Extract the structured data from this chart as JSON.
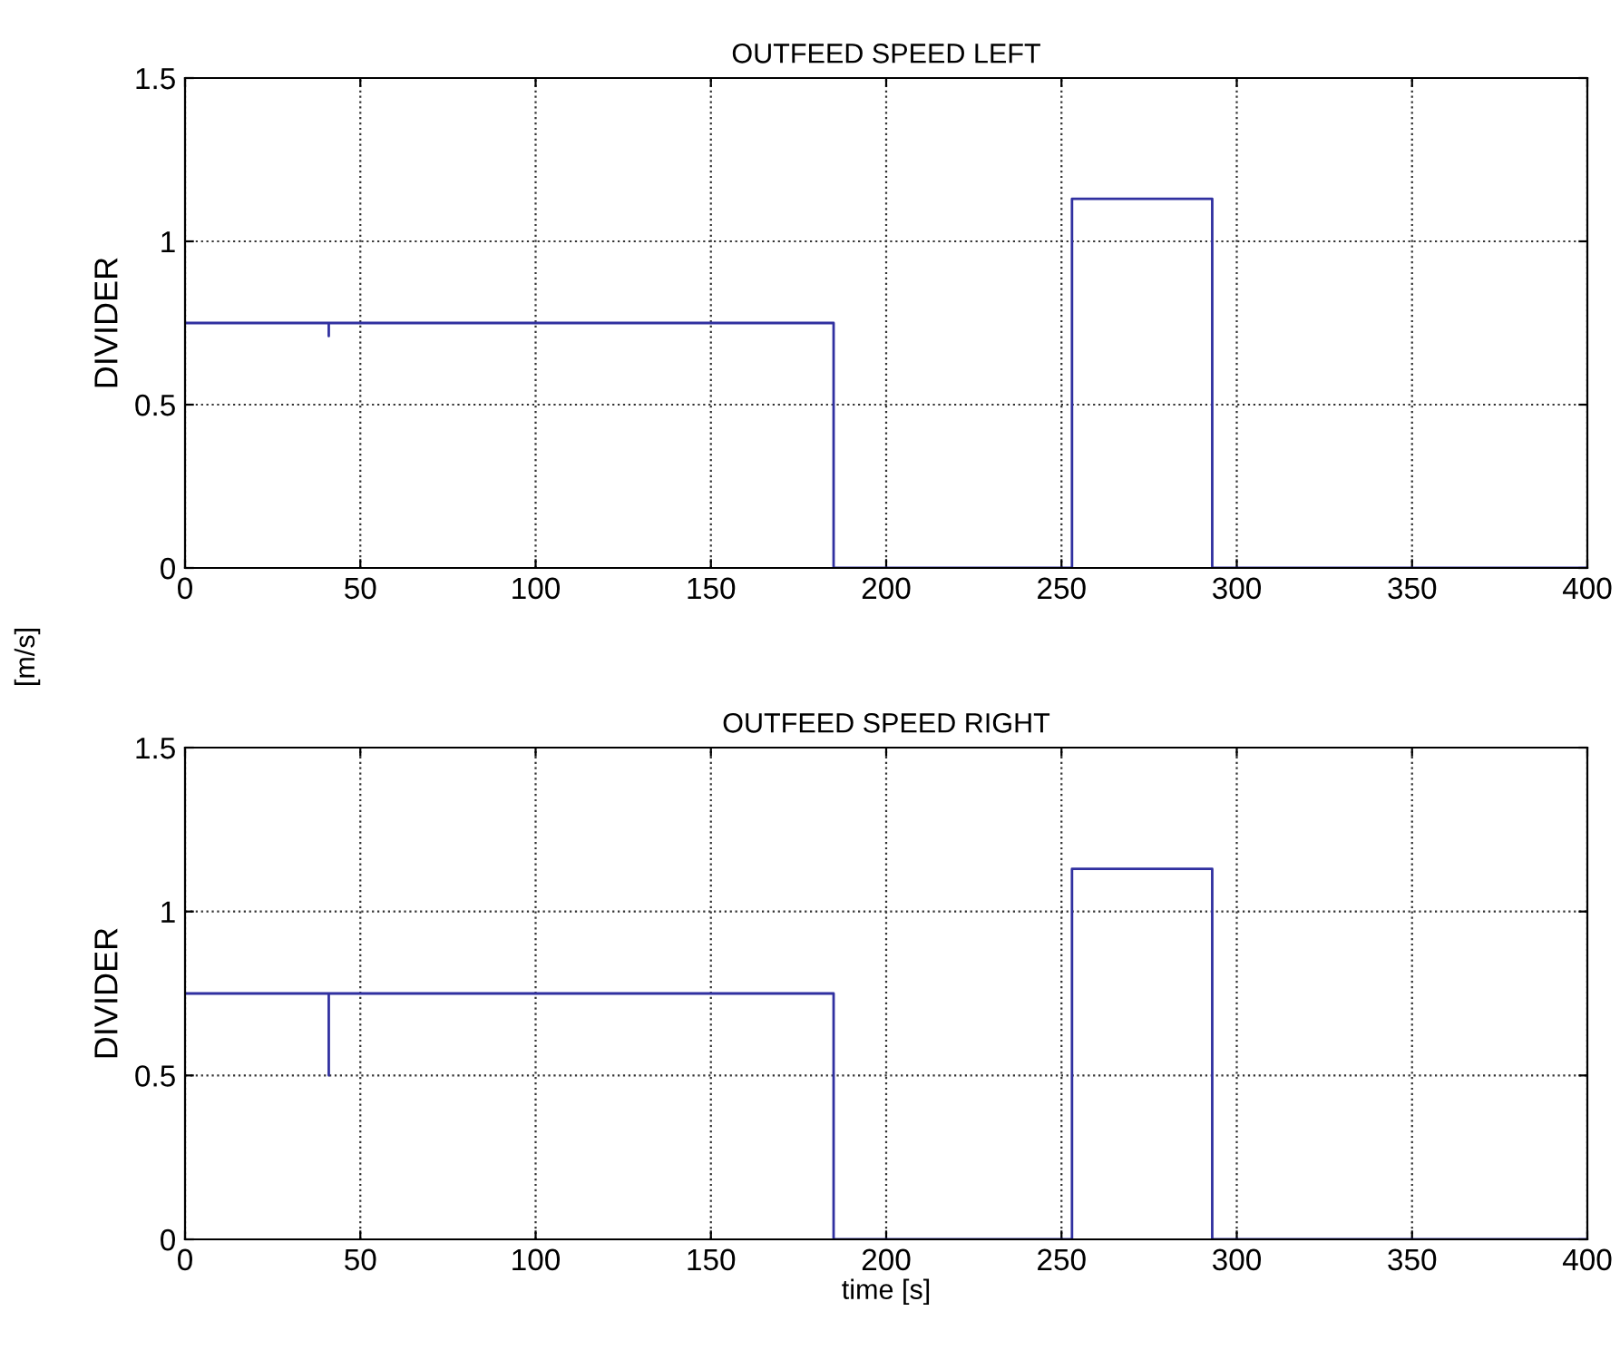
{
  "chart_data": [
    {
      "type": "line",
      "title": "OUTFEED SPEED LEFT",
      "ylabel": "DIVIDER",
      "annotations": [
        "[m/s]"
      ],
      "series": [
        {
          "color": "#3030a0",
          "x": [
            0,
            41,
            41,
            41,
            185,
            185,
            253,
            253,
            293,
            293,
            400
          ],
          "values": [
            0.75,
            0.75,
            0.71,
            0.75,
            0.75,
            0,
            0,
            1.13,
            1.13,
            0,
            0
          ]
        }
      ],
      "xlim": [
        0,
        400
      ],
      "ylim": [
        0,
        1.5
      ],
      "xticks": [
        0,
        50,
        100,
        150,
        200,
        250,
        300,
        350,
        400
      ],
      "yticks": [
        0,
        0.5,
        1,
        1.5
      ],
      "grid": true,
      "line_style": "solid"
    },
    {
      "type": "line",
      "title": "OUTFEED SPEED RIGHT",
      "ylabel": "DIVIDER",
      "xlabel": "time [s]",
      "series": [
        {
          "color": "#3030a0",
          "x": [
            0,
            41,
            41,
            41,
            185,
            185,
            253,
            253,
            293,
            293,
            400
          ],
          "values": [
            0.75,
            0.75,
            0.5,
            0.75,
            0.75,
            0,
            0,
            1.13,
            1.13,
            0,
            0
          ]
        }
      ],
      "xlim": [
        0,
        400
      ],
      "ylim": [
        0,
        1.5
      ],
      "xticks": [
        0,
        50,
        100,
        150,
        200,
        250,
        300,
        350,
        400
      ],
      "yticks": [
        0,
        0.5,
        1,
        1.5
      ],
      "grid": true,
      "line_style": "solid"
    }
  ]
}
